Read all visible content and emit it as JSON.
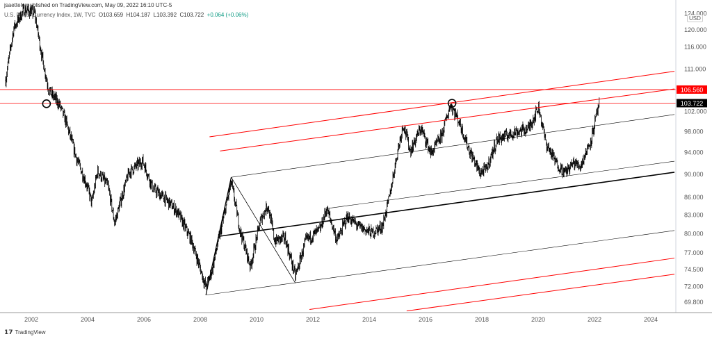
{
  "header": {
    "publisher": "jsaettele published on TradingView.com, May 09, 2022 16:10 UTC-5",
    "symbol": "U.S. Dollar Currency Index, 1W, TVC",
    "open": "O103.659",
    "high": "H104.187",
    "low": "L103.392",
    "close": "C103.722",
    "change": "+0.064 (+0.06%)"
  },
  "axis": {
    "currency": "USD"
  },
  "footer": {
    "brand": "TradingView",
    "logo_icon": "tradingview-logo-icon"
  },
  "chart_data": {
    "type": "ohlc",
    "scale": "log",
    "grid": false,
    "ylim": [
      67.5,
      126
    ],
    "xlim": [
      2000.9,
      2025.0
    ],
    "y_ticks": [
      "124.000",
      "120.000",
      "116.000",
      "111.000",
      "102.000",
      "98.000",
      "94.000",
      "90.000",
      "86.000",
      "83.000",
      "80.000",
      "77.000",
      "74.500",
      "72.000",
      "69.800"
    ],
    "x_ticks": [
      "2002",
      "2004",
      "2006",
      "2008",
      "2010",
      "2012",
      "2014",
      "2016",
      "2018",
      "2020",
      "2022",
      "2024"
    ],
    "price_labels": [
      {
        "value": "106.560",
        "color": "#ff0000"
      },
      {
        "value": "103.722",
        "color": "#000000"
      }
    ],
    "price_path": [
      [
        2001.09,
        108.6
      ],
      [
        2001.38,
        120.5
      ],
      [
        2001.75,
        125
      ],
      [
        2002.12,
        124
      ],
      [
        2002.37,
        114
      ],
      [
        2002.62,
        106.4
      ],
      [
        2002.99,
        103.5
      ],
      [
        2003.23,
        100
      ],
      [
        2003.6,
        93
      ],
      [
        2003.98,
        88
      ],
      [
        2004.15,
        85
      ],
      [
        2004.35,
        90.6
      ],
      [
        2004.72,
        88
      ],
      [
        2004.96,
        81.7
      ],
      [
        2005.46,
        90.3
      ],
      [
        2005.95,
        92.5
      ],
      [
        2006.32,
        87.5
      ],
      [
        2006.81,
        85.5
      ],
      [
        2007.19,
        83.5
      ],
      [
        2007.68,
        79
      ],
      [
        2008.2,
        71.9
      ],
      [
        2008.42,
        74.4
      ],
      [
        2008.79,
        81.8
      ],
      [
        2009.1,
        88.6
      ],
      [
        2009.41,
        80.6
      ],
      [
        2009.78,
        74.9
      ],
      [
        2010.15,
        82.3
      ],
      [
        2010.4,
        84.7
      ],
      [
        2010.64,
        78.9
      ],
      [
        2011.01,
        79.3
      ],
      [
        2011.38,
        73.5
      ],
      [
        2011.75,
        78.9
      ],
      [
        2012.25,
        80.6
      ],
      [
        2012.49,
        84.1
      ],
      [
        2012.86,
        78.9
      ],
      [
        2013.23,
        82.8
      ],
      [
        2013.6,
        81.2
      ],
      [
        2014.1,
        80.1
      ],
      [
        2014.47,
        81.2
      ],
      [
        2014.72,
        86
      ],
      [
        2015.01,
        94.3
      ],
      [
        2015.21,
        99.5
      ],
      [
        2015.46,
        94.3
      ],
      [
        2015.83,
        98.7
      ],
      [
        2016.2,
        93.8
      ],
      [
        2016.57,
        97.2
      ],
      [
        2016.89,
        103.5
      ],
      [
        2017.19,
        100
      ],
      [
        2017.56,
        94.3
      ],
      [
        2017.93,
        90.3
      ],
      [
        2018.17,
        91
      ],
      [
        2018.54,
        96.5
      ],
      [
        2019.16,
        97.9
      ],
      [
        2019.65,
        98.6
      ],
      [
        2020.02,
        102.9
      ],
      [
        2020.27,
        95.8
      ],
      [
        2020.64,
        92.1
      ],
      [
        2020.94,
        90.3
      ],
      [
        2021.26,
        92.1
      ],
      [
        2021.5,
        91.5
      ],
      [
        2021.88,
        96.5
      ],
      [
        2022.17,
        103.7
      ]
    ],
    "annotations": {
      "horizontal_lines": [
        {
          "price": 106.56,
          "color": "#ff0000"
        },
        {
          "price": 103.722,
          "color": "#ff0000"
        }
      ],
      "trend_lines": [
        {
          "from": [
            2008.33,
            97.0
          ],
          "to": [
            2024.84,
            110.5
          ],
          "color": "#ff0000",
          "width": 1
        },
        {
          "from": [
            2008.7,
            94.3
          ],
          "to": [
            2024.84,
            106.7
          ],
          "color": "#ff0000",
          "width": 1
        },
        {
          "from": [
            2009.1,
            89.5
          ],
          "to": [
            2024.84,
            101.4
          ],
          "color": "#000000",
          "width": 0.6
        },
        {
          "from": [
            2012.49,
            84.1
          ],
          "to": [
            2024.84,
            92.4
          ],
          "color": "#000000",
          "width": 0.6
        },
        {
          "from": [
            2008.7,
            79.6
          ],
          "to": [
            2024.84,
            90.4
          ],
          "color": "#000000",
          "width": 1.6
        },
        {
          "from": [
            2008.2,
            70.8
          ],
          "to": [
            2024.84,
            80.5
          ],
          "color": "#000000",
          "width": 0.6
        },
        {
          "from": [
            2011.88,
            68.8
          ],
          "to": [
            2024.84,
            76.2
          ],
          "color": "#ff0000",
          "width": 1
        },
        {
          "from": [
            2015.33,
            68.6
          ],
          "to": [
            2024.84,
            73.8
          ],
          "color": "#ff0000",
          "width": 1
        },
        {
          "from": [
            2008.2,
            70.8
          ],
          "to": [
            2009.1,
            89.5
          ],
          "color": "#000000",
          "width": 1.2
        },
        {
          "from": [
            2009.1,
            89.5
          ],
          "to": [
            2011.38,
            72.5
          ],
          "color": "#000000",
          "width": 0.8
        }
      ],
      "circles": [
        [
          2002.54,
          103.6
        ],
        [
          2016.94,
          103.7
        ]
      ]
    }
  }
}
